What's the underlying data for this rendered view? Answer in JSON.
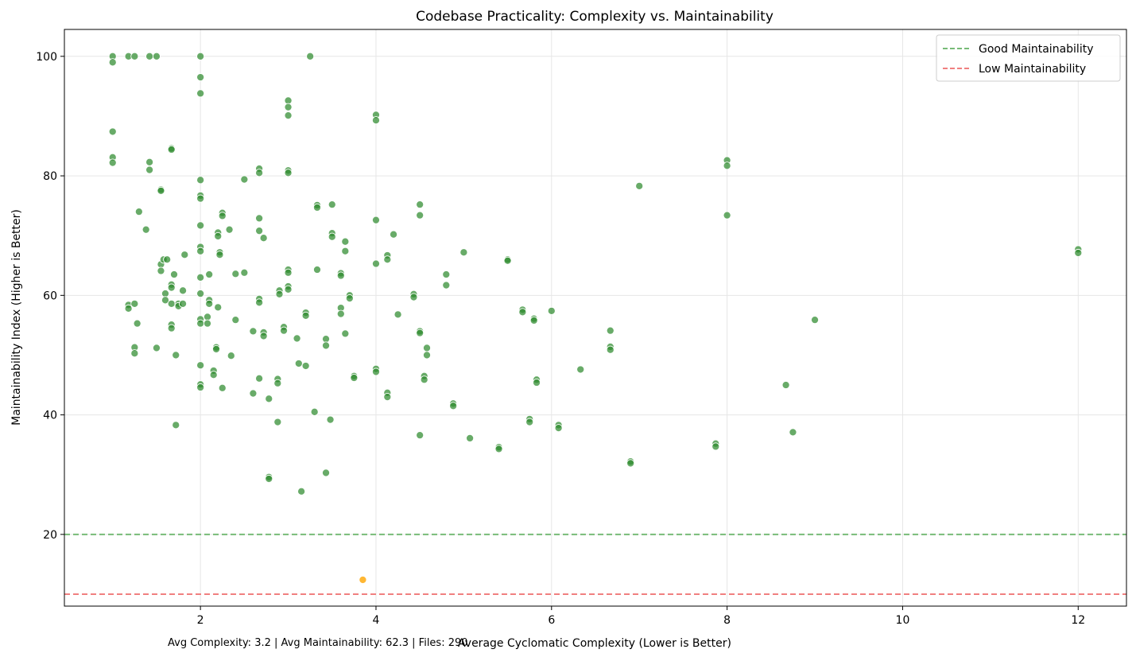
{
  "chart_data": {
    "type": "scatter",
    "title": "Codebase Practicality: Complexity vs. Maintainability",
    "xlabel": "Average Cyclomatic Complexity (Lower is Better)",
    "ylabel": "Maintainability Index (Higher is Better)",
    "xlim": [
      0.45,
      12.55
    ],
    "ylim": [
      8,
      104.5
    ],
    "xticks": [
      2,
      4,
      6,
      8,
      10,
      12
    ],
    "yticks": [
      20,
      40,
      60,
      80,
      100
    ],
    "grid": true,
    "legend_position": "top-right",
    "reference_lines": [
      {
        "label": "Good Maintainability",
        "y": 20,
        "color": "#77bb77",
        "style": "dashed"
      },
      {
        "label": "Low Maintainability",
        "y": 10,
        "color": "#f08080",
        "style": "dashed"
      }
    ],
    "point_colors": {
      "default": "#2e8b2e",
      "highlight": "#ffa500"
    },
    "points": [
      [
        1,
        100
      ],
      [
        1,
        99
      ],
      [
        1,
        87.4
      ],
      [
        1,
        83.1
      ],
      [
        1,
        82.2
      ],
      [
        1.18,
        100
      ],
      [
        1.25,
        100
      ],
      [
        1.42,
        100
      ],
      [
        1.5,
        100
      ],
      [
        2,
        100
      ],
      [
        2,
        96.5
      ],
      [
        2,
        93.8
      ],
      [
        3.25,
        100
      ],
      [
        1.42,
        82.3
      ],
      [
        1.42,
        81
      ],
      [
        1.3,
        74
      ],
      [
        1.38,
        71
      ],
      [
        1.55,
        77.7
      ],
      [
        1.55,
        77.5
      ],
      [
        1.67,
        84.6
      ],
      [
        1.67,
        84.4
      ],
      [
        1.55,
        65.2
      ],
      [
        1.55,
        64.1
      ],
      [
        1.58,
        66
      ],
      [
        1.62,
        66
      ],
      [
        1.6,
        60.3
      ],
      [
        1.6,
        59.2
      ],
      [
        1.67,
        61.8
      ],
      [
        1.67,
        61.3
      ],
      [
        1.67,
        58.6
      ],
      [
        1.7,
        63.5
      ],
      [
        1.75,
        58.6
      ],
      [
        1.75,
        58.2
      ],
      [
        1.8,
        58.6
      ],
      [
        1.8,
        60.8
      ],
      [
        1.82,
        66.8
      ],
      [
        1.18,
        58.4
      ],
      [
        1.18,
        57.8
      ],
      [
        1.25,
        58.6
      ],
      [
        1.28,
        55.3
      ],
      [
        1.25,
        51.3
      ],
      [
        1.25,
        50.3
      ],
      [
        1.5,
        51.2
      ],
      [
        1.67,
        55.1
      ],
      [
        1.67,
        54.5
      ],
      [
        1.72,
        50
      ],
      [
        1.72,
        38.3
      ],
      [
        2,
        79.3
      ],
      [
        2,
        76.7
      ],
      [
        2,
        76.2
      ],
      [
        2,
        71.7
      ],
      [
        2,
        68.1
      ],
      [
        2,
        67.4
      ],
      [
        2,
        63
      ],
      [
        2,
        60.3
      ],
      [
        2,
        56
      ],
      [
        2,
        55.3
      ],
      [
        2,
        48.3
      ],
      [
        2,
        45.1
      ],
      [
        2,
        44.6
      ],
      [
        2.1,
        63.5
      ],
      [
        2.1,
        59.2
      ],
      [
        2.1,
        58.6
      ],
      [
        2.08,
        56.4
      ],
      [
        2.08,
        55.3
      ],
      [
        2.15,
        47.4
      ],
      [
        2.15,
        46.7
      ],
      [
        2.18,
        51.3
      ],
      [
        2.18,
        51
      ],
      [
        2.2,
        70.5
      ],
      [
        2.2,
        69.9
      ],
      [
        2.22,
        67.2
      ],
      [
        2.22,
        66.8
      ],
      [
        2.2,
        58
      ],
      [
        2.25,
        73.8
      ],
      [
        2.25,
        73.3
      ],
      [
        2.25,
        44.5
      ],
      [
        2.33,
        71
      ],
      [
        2.35,
        49.9
      ],
      [
        2.4,
        63.6
      ],
      [
        2.4,
        55.9
      ],
      [
        2.5,
        79.4
      ],
      [
        2.5,
        63.8
      ],
      [
        2.6,
        54
      ],
      [
        2.6,
        43.6
      ],
      [
        2.67,
        81.2
      ],
      [
        2.67,
        80.5
      ],
      [
        2.67,
        72.9
      ],
      [
        2.67,
        70.8
      ],
      [
        2.67,
        59.4
      ],
      [
        2.67,
        58.8
      ],
      [
        2.67,
        46.1
      ],
      [
        2.72,
        69.6
      ],
      [
        2.72,
        53.8
      ],
      [
        2.72,
        53.2
      ],
      [
        2.78,
        42.7
      ],
      [
        2.78,
        29.6
      ],
      [
        2.78,
        29.3
      ],
      [
        2.88,
        46
      ],
      [
        2.88,
        45.3
      ],
      [
        2.88,
        38.8
      ],
      [
        2.9,
        60.8
      ],
      [
        2.9,
        60.2
      ],
      [
        2.95,
        54.7
      ],
      [
        2.95,
        54.1
      ],
      [
        3,
        92.6
      ],
      [
        3,
        91.5
      ],
      [
        3,
        90.1
      ],
      [
        3,
        80.9
      ],
      [
        3,
        80.5
      ],
      [
        3,
        64.3
      ],
      [
        3,
        63.8
      ],
      [
        3,
        61.5
      ],
      [
        3,
        61
      ],
      [
        3.1,
        52.8
      ],
      [
        3.12,
        48.6
      ],
      [
        3.15,
        27.2
      ],
      [
        3.2,
        57.1
      ],
      [
        3.2,
        56.6
      ],
      [
        3.2,
        48.2
      ],
      [
        3.3,
        40.5
      ],
      [
        3.33,
        75.1
      ],
      [
        3.33,
        74.7
      ],
      [
        3.33,
        64.3
      ],
      [
        3.43,
        52.7
      ],
      [
        3.43,
        51.6
      ],
      [
        3.43,
        30.3
      ],
      [
        3.48,
        39.2
      ],
      [
        3.5,
        75.2
      ],
      [
        3.5,
        70.4
      ],
      [
        3.5,
        69.8
      ],
      [
        3.6,
        63.7
      ],
      [
        3.6,
        63.3
      ],
      [
        3.6,
        57.9
      ],
      [
        3.6,
        56.9
      ],
      [
        3.65,
        69
      ],
      [
        3.65,
        67.4
      ],
      [
        3.65,
        53.6
      ],
      [
        3.7,
        60
      ],
      [
        3.7,
        59.5
      ],
      [
        3.75,
        46.5
      ],
      [
        3.75,
        46.2
      ],
      [
        4,
        90.2
      ],
      [
        4,
        89.3
      ],
      [
        4,
        72.6
      ],
      [
        4,
        65.3
      ],
      [
        4,
        47.7
      ],
      [
        4,
        47.2
      ],
      [
        4.13,
        66.7
      ],
      [
        4.13,
        66
      ],
      [
        4.13,
        43.7
      ],
      [
        4.13,
        43
      ],
      [
        4.2,
        70.2
      ],
      [
        4.25,
        56.8
      ],
      [
        4.43,
        60.2
      ],
      [
        4.43,
        59.7
      ],
      [
        4.5,
        75.2
      ],
      [
        4.5,
        73.4
      ],
      [
        4.5,
        54
      ],
      [
        4.5,
        53.7
      ],
      [
        4.5,
        36.6
      ],
      [
        4.55,
        46.5
      ],
      [
        4.55,
        45.9
      ],
      [
        4.58,
        51.2
      ],
      [
        4.58,
        50
      ],
      [
        4.8,
        63.5
      ],
      [
        4.8,
        61.7
      ],
      [
        4.88,
        41.9
      ],
      [
        4.88,
        41.5
      ],
      [
        5,
        67.2
      ],
      [
        5.07,
        36.1
      ],
      [
        5.4,
        34.6
      ],
      [
        5.4,
        34.3
      ],
      [
        5.5,
        66
      ],
      [
        5.5,
        65.8
      ],
      [
        5.67,
        57.6
      ],
      [
        5.67,
        57.2
      ],
      [
        5.75,
        39.3
      ],
      [
        5.75,
        38.8
      ],
      [
        5.8,
        56.1
      ],
      [
        5.8,
        55.8
      ],
      [
        5.83,
        45.9
      ],
      [
        5.83,
        45.4
      ],
      [
        6,
        57.4
      ],
      [
        6.08,
        38.3
      ],
      [
        6.08,
        37.8
      ],
      [
        6.33,
        47.6
      ],
      [
        6.67,
        54.1
      ],
      [
        6.67,
        51.4
      ],
      [
        6.67,
        50.9
      ],
      [
        6.9,
        32.2
      ],
      [
        6.9,
        31.9
      ],
      [
        7,
        78.3
      ],
      [
        7.87,
        35.2
      ],
      [
        7.87,
        34.7
      ],
      [
        8,
        82.6
      ],
      [
        8,
        81.7
      ],
      [
        8,
        73.4
      ],
      [
        8.67,
        45
      ],
      [
        8.75,
        37.1
      ],
      [
        9,
        55.9
      ],
      [
        12,
        67.7
      ],
      [
        12,
        67.1
      ]
    ],
    "highlight_points": [
      [
        3.85,
        12.4
      ]
    ],
    "footer_text": "Avg Complexity: 3.2 | Avg Maintainability: 62.3 | Files: 290"
  }
}
